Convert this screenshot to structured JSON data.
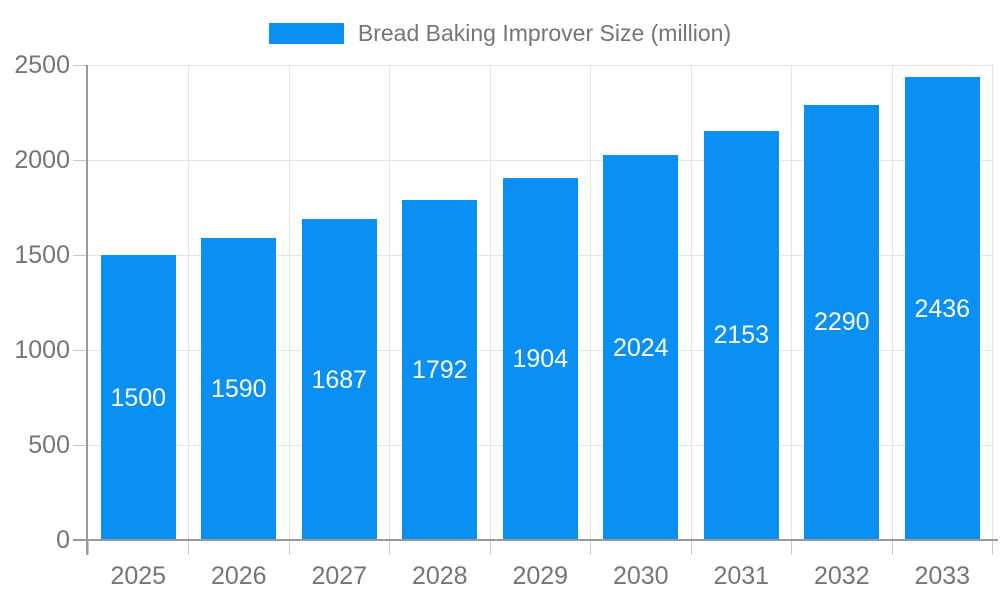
{
  "chart_data": {
    "type": "bar",
    "title": "Bread Baking Improver Size (million)",
    "categories": [
      "2025",
      "2026",
      "2027",
      "2028",
      "2029",
      "2030",
      "2031",
      "2032",
      "2033"
    ],
    "series": [
      {
        "name": "Bread Baking Improver Size (million)",
        "values": [
          1500,
          1590,
          1687,
          1792,
          1904,
          2024,
          2153,
          2290,
          2436
        ]
      }
    ],
    "value_labels_position": "inside-center",
    "xlabel": "",
    "ylabel": "",
    "ylim": [
      0,
      2500
    ],
    "yticks": [
      0,
      500,
      1000,
      1500,
      2000,
      2500
    ],
    "grid": true,
    "legend_position": "top-center"
  },
  "legend": {
    "label": "Bread Baking Improver Size (million)"
  },
  "colors": {
    "bar": "#0a90f2",
    "axis_text": "#757575",
    "value_label_text": "#ffffff",
    "grid_line": "#e6e6e6",
    "tick_line": "#c8c8c8",
    "axis_line": "#999999",
    "background": "#ffffff"
  }
}
